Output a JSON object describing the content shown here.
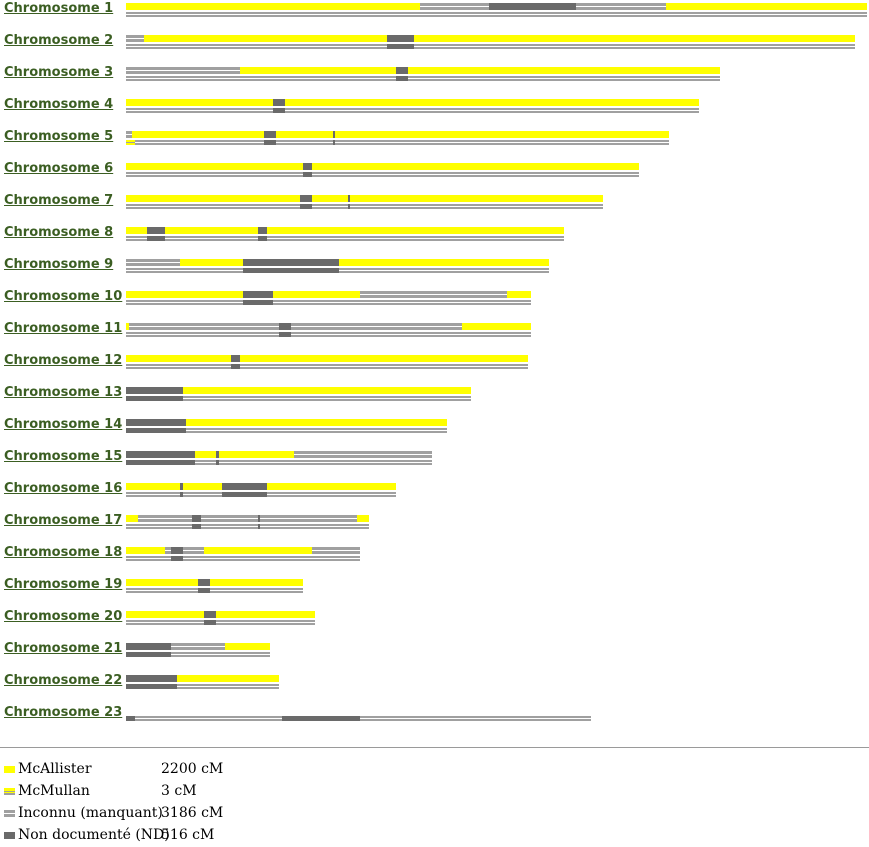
{
  "colors": {
    "mcallister": "#ffff00",
    "mcmullan": "#ffff00",
    "unknown": "#a0a0a0",
    "undocumented": "#6a6a6a",
    "link": "#3b5e22"
  },
  "chromosomes": [
    {
      "label": "Chromosome 1"
    },
    {
      "label": "Chromosome 2"
    },
    {
      "label": "Chromosome 3"
    },
    {
      "label": "Chromosome 4"
    },
    {
      "label": "Chromosome 5"
    },
    {
      "label": "Chromosome 6"
    },
    {
      "label": "Chromosome 7"
    },
    {
      "label": "Chromosome 8"
    },
    {
      "label": "Chromosome 9"
    },
    {
      "label": "Chromosome 10"
    },
    {
      "label": "Chromosome 11"
    },
    {
      "label": "Chromosome 12"
    },
    {
      "label": "Chromosome 13"
    },
    {
      "label": "Chromosome 14"
    },
    {
      "label": "Chromosome 15"
    },
    {
      "label": "Chromosome 16"
    },
    {
      "label": "Chromosome 17"
    },
    {
      "label": "Chromosome 18"
    },
    {
      "label": "Chromosome 19"
    },
    {
      "label": "Chromosome 20"
    },
    {
      "label": "Chromosome 21"
    },
    {
      "label": "Chromosome 22"
    },
    {
      "label": "Chromosome 23"
    }
  ],
  "legend": [
    {
      "name": "McAllister",
      "value": "2200 cM",
      "swatch": "mcallister"
    },
    {
      "name": "McMullan",
      "value": "3 cM",
      "swatch": "mcmullan"
    },
    {
      "name": "Inconnu (manquant)",
      "value": "3186 cM",
      "swatch": "unknown"
    },
    {
      "name": "Non documenté (ND)",
      "value": "516 cM",
      "swatch": "undocumented"
    }
  ]
}
